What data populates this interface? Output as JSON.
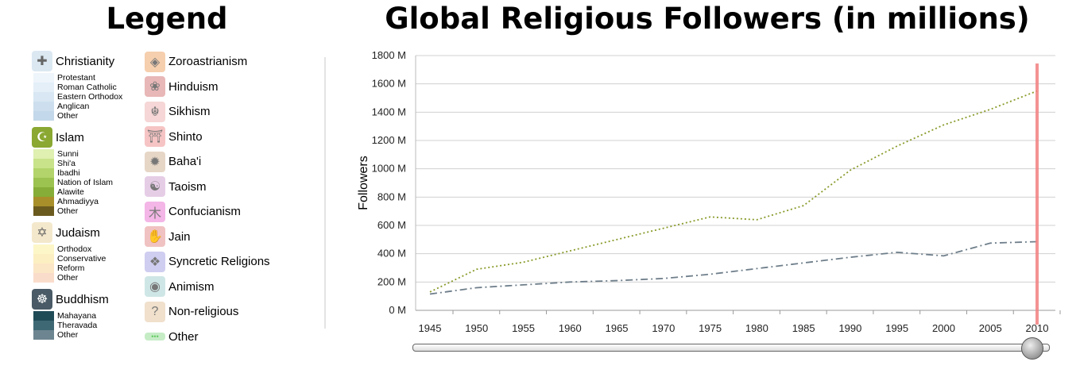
{
  "legend": {
    "title": "Legend",
    "column1": [
      {
        "name": "Christianity",
        "icon": "cross-icon",
        "color": "#dbe8f2",
        "subs": [
          {
            "label": "Protestant",
            "color": "#eef5fb"
          },
          {
            "label": "Roman Catholic",
            "color": "#e4eff8"
          },
          {
            "label": "Eastern Orthodox",
            "color": "#d8e7f3"
          },
          {
            "label": "Anglican",
            "color": "#cddfee"
          },
          {
            "label": "Other",
            "color": "#c3d8ea"
          }
        ]
      },
      {
        "name": "Islam",
        "icon": "crescent-star-icon",
        "color": "#8aa832",
        "subs": [
          {
            "label": "Sunni",
            "color": "#dff0b0"
          },
          {
            "label": "Shi'a",
            "color": "#c8e38a"
          },
          {
            "label": "Ibadhi",
            "color": "#b2d46a"
          },
          {
            "label": "Nation of Islam",
            "color": "#9cc24f"
          },
          {
            "label": "Alawite",
            "color": "#86ad37"
          },
          {
            "label": "Ahmadiyya",
            "color": "#a88f2a"
          },
          {
            "label": "Other",
            "color": "#6b5a1e"
          }
        ]
      },
      {
        "name": "Judaism",
        "icon": "star-of-david-icon",
        "color": "#f4e8cc",
        "subs": [
          {
            "label": "Orthodox",
            "color": "#fdf6c8"
          },
          {
            "label": "Conservative",
            "color": "#fcefc2"
          },
          {
            "label": "Reform",
            "color": "#fbe6c6"
          },
          {
            "label": "Other",
            "color": "#fadccb"
          }
        ]
      },
      {
        "name": "Buddhism",
        "icon": "dharma-wheel-icon",
        "color": "#4a5a66",
        "subs": [
          {
            "label": "Mahayana",
            "color": "#1f4b57"
          },
          {
            "label": "Theravada",
            "color": "#3f6875"
          },
          {
            "label": "Other",
            "color": "#6d8590"
          }
        ]
      }
    ],
    "column2": [
      {
        "name": "Zoroastrianism",
        "icon": "faravahar-icon",
        "color": "#f6cfae"
      },
      {
        "name": "Hinduism",
        "icon": "om-icon",
        "color": "#e8b7b7"
      },
      {
        "name": "Sikhism",
        "icon": "khanda-icon",
        "color": "#f6d6d6"
      },
      {
        "name": "Shinto",
        "icon": "torii-icon",
        "color": "#f6c4c4"
      },
      {
        "name": "Baha'i",
        "icon": "nine-point-star-icon",
        "color": "#e6d6c6"
      },
      {
        "name": "Taoism",
        "icon": "yin-yang-icon",
        "color": "#e6cde6"
      },
      {
        "name": "Confucianism",
        "icon": "confucian-icon",
        "color": "#f3b6e6"
      },
      {
        "name": "Jain",
        "icon": "jain-hand-icon",
        "color": "#f0c2c2"
      },
      {
        "name": "Syncretic Religions",
        "icon": "syncretic-icon",
        "color": "#cfcdf0"
      },
      {
        "name": "Animism",
        "icon": "eye-icon",
        "color": "#cfe6e6"
      },
      {
        "name": "Non-religious",
        "icon": "question-icon",
        "color": "#f0e0cc"
      },
      {
        "name": "Other",
        "icon": "dots-icon",
        "color": "#c6ecc6"
      }
    ]
  },
  "chart_data": {
    "type": "line",
    "title": "Global Religious Followers (in millions)",
    "xlabel": "",
    "ylabel": "Followers",
    "x": [
      1945,
      1950,
      1955,
      1960,
      1965,
      1970,
      1975,
      1980,
      1985,
      1990,
      1995,
      2000,
      2005,
      2010
    ],
    "ylim": [
      0,
      1800
    ],
    "yticks": [
      "0 M",
      "200 M",
      "400 M",
      "600 M",
      "800 M",
      "1000 M",
      "1200 M",
      "1400 M",
      "1600 M",
      "1800 M"
    ],
    "series": [
      {
        "legend_ref": "Other",
        "color": "#8a9a2a",
        "style": "dotted",
        "values": [
          130,
          290,
          340,
          420,
          500,
          580,
          660,
          640,
          740,
          990,
          1160,
          1310,
          1420,
          1550
        ]
      },
      {
        "legend_ref": "Buddhism",
        "color": "#6e7e8a",
        "style": "dash-dot",
        "values": [
          115,
          160,
          180,
          200,
          210,
          225,
          255,
          295,
          335,
          375,
          410,
          385,
          475,
          485
        ]
      }
    ],
    "grid": true,
    "marker_year": 2010,
    "marker_color": "#f28080"
  },
  "slider": {
    "value": 2010,
    "min": 1945,
    "max": 2010
  }
}
